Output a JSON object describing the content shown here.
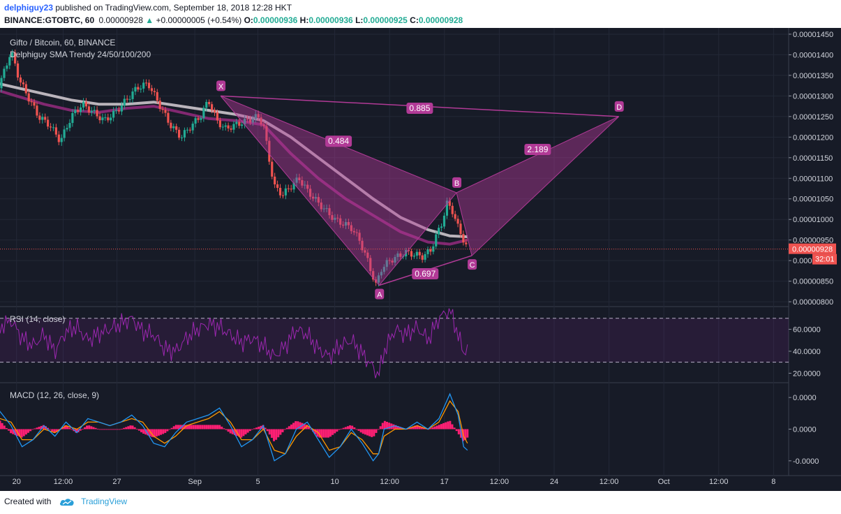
{
  "header": {
    "author": "delphiguy23",
    "published": "published on TradingView.com, September 18, 2018 12:28 HKT",
    "symbol": "BINANCE:GTOBTC, 60",
    "last": "0.00000928",
    "change": "+0.00000005 (+0.54%)",
    "o_label": "O:",
    "o_val": "0.00000936",
    "h_label": "H:",
    "h_val": "0.00000936",
    "l_label": "L:",
    "l_val": "0.00000925",
    "c_label": "C:",
    "c_val": "0.00000928"
  },
  "footer": {
    "created": "Created with",
    "brand": "TradingView"
  },
  "colors": {
    "background": "#171b27",
    "up": "#22ab94",
    "down": "#ef5350",
    "pattern": "#b13a96",
    "rsi": "#9c27b0",
    "macd": "#2196f3",
    "signal": "#ff9800",
    "hist": "#ff1f74"
  },
  "chart_data": [
    {
      "type": "line",
      "title": "Gifto / Bitcoin, 60, BINANCE",
      "subtitle": "Delphiguy SMA Trendy 24/50/100/200",
      "ylim": [
        7.9e-06,
        1.455e-05
      ],
      "y_ticks": [
        "0.00001450",
        "0.00001400",
        "0.00001350",
        "0.00001300",
        "0.00001250",
        "0.00001200",
        "0.00001150",
        "0.00001100",
        "0.00001050",
        "0.00001000",
        "0.00000950",
        "0.00000900",
        "0.00000850",
        "0.00000800"
      ],
      "price_label": "0.00000928",
      "countdown": "32:01",
      "x_ticks": [
        "20",
        "12:00",
        "27",
        "Sep",
        "5",
        "10",
        "12:00",
        "17",
        "12:00",
        "24",
        "12:00",
        "Oct",
        "12:00",
        "8"
      ],
      "x_tick_t": [
        0.05,
        0.135,
        0.233,
        0.375,
        0.49,
        0.63,
        0.73,
        0.83,
        0.93,
        1.03,
        1.13,
        1.23,
        1.33,
        1.43
      ],
      "price_series": [
        [
          0.0,
          1.3e-05
        ],
        [
          0.02,
          1.33e-05
        ],
        [
          0.04,
          1.41e-05
        ],
        [
          0.055,
          1.34e-05
        ],
        [
          0.07,
          1.3e-05
        ],
        [
          0.09,
          1.25e-05
        ],
        [
          0.11,
          1.23e-05
        ],
        [
          0.13,
          1.19e-05
        ],
        [
          0.15,
          1.25e-05
        ],
        [
          0.17,
          1.28e-05
        ],
        [
          0.19,
          1.26e-05
        ],
        [
          0.21,
          1.24e-05
        ],
        [
          0.23,
          1.26e-05
        ],
        [
          0.25,
          1.29e-05
        ],
        [
          0.27,
          1.32e-05
        ],
        [
          0.29,
          1.33e-05
        ],
        [
          0.31,
          1.28e-05
        ],
        [
          0.33,
          1.23e-05
        ],
        [
          0.35,
          1.2e-05
        ],
        [
          0.37,
          1.23e-05
        ],
        [
          0.385,
          1.25e-05
        ],
        [
          0.4,
          1.29e-05
        ],
        [
          0.415,
          1.24e-05
        ],
        [
          0.43,
          1.22e-05
        ],
        [
          0.45,
          1.23e-05
        ],
        [
          0.47,
          1.24e-05
        ],
        [
          0.49,
          1.25e-05
        ],
        [
          0.5,
          1.23e-05
        ],
        [
          0.51,
          1.15e-05
        ],
        [
          0.52,
          1.08e-05
        ],
        [
          0.535,
          1.06e-05
        ],
        [
          0.55,
          1.08e-05
        ],
        [
          0.565,
          1.1e-05
        ],
        [
          0.58,
          1.07e-05
        ],
        [
          0.6,
          1.04e-05
        ],
        [
          0.615,
          1.02e-05
        ],
        [
          0.63,
          1e-05
        ],
        [
          0.645,
          9.9e-06
        ],
        [
          0.66,
          9.8e-06
        ],
        [
          0.675,
          9.5e-06
        ],
        [
          0.69,
          9e-06
        ],
        [
          0.7,
          8.6e-06
        ],
        [
          0.705,
          8.4e-06
        ],
        [
          0.715,
          8.8e-06
        ],
        [
          0.73,
          9e-06
        ],
        [
          0.745,
          9.1e-06
        ],
        [
          0.76,
          9.2e-06
        ],
        [
          0.775,
          9.15e-06
        ],
        [
          0.79,
          9.1e-06
        ],
        [
          0.805,
          9.25e-06
        ],
        [
          0.815,
          9.6e-06
        ],
        [
          0.825,
          9.9e-06
        ],
        [
          0.835,
          1.04e-05
        ],
        [
          0.845,
          1.02e-05
        ],
        [
          0.855,
          9.8e-06
        ],
        [
          0.865,
          9.5e-06
        ],
        [
          0.872,
          9.28e-06
        ]
      ],
      "sma200": [
        [
          0.0,
          1.335e-05
        ],
        [
          0.05,
          1.32e-05
        ],
        [
          0.1,
          1.305e-05
        ],
        [
          0.15,
          1.29e-05
        ],
        [
          0.2,
          1.28e-05
        ],
        [
          0.25,
          1.28e-05
        ],
        [
          0.3,
          1.285e-05
        ],
        [
          0.35,
          1.275e-05
        ],
        [
          0.4,
          1.265e-05
        ],
        [
          0.45,
          1.255e-05
        ],
        [
          0.5,
          1.24e-05
        ],
        [
          0.55,
          1.2e-05
        ],
        [
          0.6,
          1.15e-05
        ],
        [
          0.65,
          1.1e-05
        ],
        [
          0.7,
          1.05e-05
        ],
        [
          0.75,
          1.005e-05
        ],
        [
          0.8,
          9.75e-06
        ],
        [
          0.84,
          9.6e-06
        ],
        [
          0.872,
          9.58e-06
        ]
      ],
      "sma100": [
        [
          0.0,
          1.32e-05
        ],
        [
          0.05,
          1.3e-05
        ],
        [
          0.1,
          1.28e-05
        ],
        [
          0.15,
          1.265e-05
        ],
        [
          0.2,
          1.26e-05
        ],
        [
          0.25,
          1.27e-05
        ],
        [
          0.3,
          1.275e-05
        ],
        [
          0.35,
          1.26e-05
        ],
        [
          0.4,
          1.245e-05
        ],
        [
          0.45,
          1.24e-05
        ],
        [
          0.5,
          1.23e-05
        ],
        [
          0.55,
          1.16e-05
        ],
        [
          0.6,
          1.1e-05
        ],
        [
          0.65,
          1.05e-05
        ],
        [
          0.7,
          1.01e-05
        ],
        [
          0.75,
          9.7e-06
        ],
        [
          0.8,
          9.45e-06
        ],
        [
          0.84,
          9.4e-06
        ],
        [
          0.872,
          9.5e-06
        ]
      ],
      "pattern": {
        "points": [
          {
            "name": "X",
            "t": 0.422,
            "v": 1.3e-05
          },
          {
            "name": "A",
            "t": 0.711,
            "v": 8.4e-06
          },
          {
            "name": "B",
            "t": 0.852,
            "v": 1.065e-05
          },
          {
            "name": "C",
            "t": 0.88,
            "v": 9.12e-06
          },
          {
            "name": "D",
            "t": 1.148,
            "v": 1.25e-05
          }
        ],
        "ratios": [
          {
            "label": "0.885",
            "t": 0.785,
            "v": 1.27e-05
          },
          {
            "label": "0.484",
            "t": 0.637,
            "v": 1.19e-05
          },
          {
            "label": "2.189",
            "t": 1.0,
            "v": 1.17e-05
          },
          {
            "label": "0.697",
            "t": 0.795,
            "v": 8.68e-06
          }
        ]
      }
    },
    {
      "type": "line",
      "title": "RSI (14, close)",
      "ylim": [
        12,
        80
      ],
      "y_ticks": [
        "60.0000",
        "40.0000",
        "20.0000"
      ],
      "bands": [
        70,
        30
      ],
      "series": [
        [
          0.0,
          50
        ],
        [
          0.02,
          62
        ],
        [
          0.04,
          68
        ],
        [
          0.06,
          52
        ],
        [
          0.08,
          45
        ],
        [
          0.1,
          55
        ],
        [
          0.12,
          40
        ],
        [
          0.14,
          58
        ],
        [
          0.16,
          62
        ],
        [
          0.18,
          50
        ],
        [
          0.2,
          56
        ],
        [
          0.22,
          60
        ],
        [
          0.24,
          65
        ],
        [
          0.26,
          70
        ],
        [
          0.28,
          58
        ],
        [
          0.3,
          55
        ],
        [
          0.32,
          42
        ],
        [
          0.34,
          40
        ],
        [
          0.36,
          52
        ],
        [
          0.38,
          60
        ],
        [
          0.4,
          65
        ],
        [
          0.42,
          62
        ],
        [
          0.44,
          55
        ],
        [
          0.46,
          48
        ],
        [
          0.48,
          52
        ],
        [
          0.5,
          45
        ],
        [
          0.52,
          35
        ],
        [
          0.54,
          45
        ],
        [
          0.56,
          60
        ],
        [
          0.58,
          55
        ],
        [
          0.6,
          42
        ],
        [
          0.62,
          35
        ],
        [
          0.64,
          45
        ],
        [
          0.66,
          50
        ],
        [
          0.68,
          38
        ],
        [
          0.7,
          25
        ],
        [
          0.71,
          18
        ],
        [
          0.72,
          40
        ],
        [
          0.74,
          60
        ],
        [
          0.76,
          55
        ],
        [
          0.78,
          62
        ],
        [
          0.8,
          50
        ],
        [
          0.82,
          70
        ],
        [
          0.84,
          78
        ],
        [
          0.855,
          55
        ],
        [
          0.865,
          38
        ],
        [
          0.872,
          45
        ]
      ]
    },
    {
      "type": "line",
      "title": "MACD (12, 26, close, 9)",
      "ylim": [
        -1.3,
        1.3
      ],
      "y_ticks": [
        "0.0000",
        "0.0000",
        "-0.0000"
      ],
      "macd": [
        [
          0.0,
          0.2
        ],
        [
          0.02,
          0.5
        ],
        [
          0.04,
          0.1
        ],
        [
          0.06,
          -0.5
        ],
        [
          0.08,
          -0.3
        ],
        [
          0.1,
          0.1
        ],
        [
          0.12,
          -0.2
        ],
        [
          0.14,
          0.2
        ],
        [
          0.16,
          -0.1
        ],
        [
          0.18,
          0.3
        ],
        [
          0.2,
          0.2
        ],
        [
          0.22,
          0.1
        ],
        [
          0.24,
          0.2
        ],
        [
          0.26,
          0.4
        ],
        [
          0.28,
          0.1
        ],
        [
          0.3,
          -0.4
        ],
        [
          0.32,
          -0.5
        ],
        [
          0.34,
          -0.1
        ],
        [
          0.36,
          0.2
        ],
        [
          0.38,
          0.3
        ],
        [
          0.4,
          0.4
        ],
        [
          0.42,
          0.6
        ],
        [
          0.44,
          0.1
        ],
        [
          0.46,
          -0.5
        ],
        [
          0.48,
          -0.3
        ],
        [
          0.5,
          0.1
        ],
        [
          0.52,
          -0.9
        ],
        [
          0.54,
          -0.7
        ],
        [
          0.56,
          0.0
        ],
        [
          0.58,
          0.2
        ],
        [
          0.6,
          -0.3
        ],
        [
          0.62,
          -0.8
        ],
        [
          0.64,
          -0.5
        ],
        [
          0.66,
          0.0
        ],
        [
          0.68,
          -0.4
        ],
        [
          0.7,
          -0.9
        ],
        [
          0.71,
          -0.7
        ],
        [
          0.72,
          0.0
        ],
        [
          0.74,
          0.1
        ],
        [
          0.76,
          0.0
        ],
        [
          0.78,
          0.2
        ],
        [
          0.8,
          0.0
        ],
        [
          0.82,
          0.3
        ],
        [
          0.84,
          1.0
        ],
        [
          0.855,
          0.4
        ],
        [
          0.865,
          -0.5
        ],
        [
          0.872,
          -0.6
        ]
      ],
      "signal": [
        [
          0.0,
          0.1
        ],
        [
          0.02,
          0.3
        ],
        [
          0.04,
          0.2
        ],
        [
          0.06,
          -0.3
        ],
        [
          0.08,
          -0.3
        ],
        [
          0.1,
          0.0
        ],
        [
          0.12,
          -0.1
        ],
        [
          0.14,
          0.1
        ],
        [
          0.16,
          0.0
        ],
        [
          0.18,
          0.2
        ],
        [
          0.2,
          0.2
        ],
        [
          0.22,
          0.1
        ],
        [
          0.24,
          0.2
        ],
        [
          0.26,
          0.3
        ],
        [
          0.28,
          0.2
        ],
        [
          0.3,
          -0.2
        ],
        [
          0.32,
          -0.4
        ],
        [
          0.34,
          -0.2
        ],
        [
          0.36,
          0.1
        ],
        [
          0.38,
          0.2
        ],
        [
          0.4,
          0.3
        ],
        [
          0.42,
          0.5
        ],
        [
          0.44,
          0.2
        ],
        [
          0.46,
          -0.3
        ],
        [
          0.48,
          -0.3
        ],
        [
          0.5,
          0.0
        ],
        [
          0.52,
          -0.6
        ],
        [
          0.54,
          -0.7
        ],
        [
          0.56,
          -0.2
        ],
        [
          0.58,
          0.1
        ],
        [
          0.6,
          -0.1
        ],
        [
          0.62,
          -0.6
        ],
        [
          0.64,
          -0.5
        ],
        [
          0.66,
          -0.1
        ],
        [
          0.68,
          -0.3
        ],
        [
          0.7,
          -0.7
        ],
        [
          0.71,
          -0.7
        ],
        [
          0.72,
          -0.2
        ],
        [
          0.74,
          0.0
        ],
        [
          0.76,
          0.0
        ],
        [
          0.78,
          0.1
        ],
        [
          0.8,
          0.0
        ],
        [
          0.82,
          0.2
        ],
        [
          0.84,
          0.8
        ],
        [
          0.855,
          0.5
        ],
        [
          0.865,
          -0.2
        ],
        [
          0.872,
          -0.4
        ]
      ]
    }
  ]
}
